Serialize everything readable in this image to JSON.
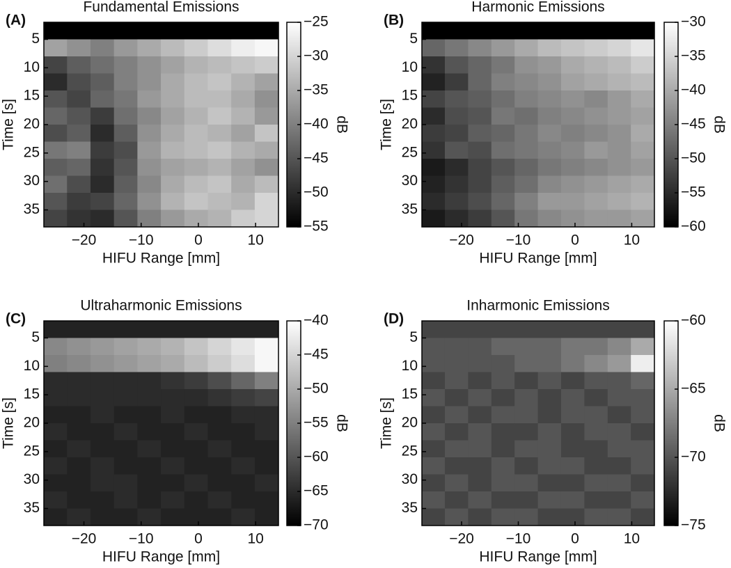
{
  "chart_data": [
    {
      "type": "heatmap",
      "panel_label": "(A)",
      "title": "Fundamental Emissions",
      "xlabel": "HIFU Range [mm]",
      "ylabel": "Time [s]",
      "colorbar_label": "dB",
      "colormap": "gray",
      "y_reversed": true,
      "x": [
        -25,
        -20.9,
        -16.8,
        -12.7,
        -8.6,
        -4.5,
        -0.4,
        3.7,
        7.8,
        11.9
      ],
      "y": [
        3.5,
        6.5,
        9.5,
        12.5,
        15.5,
        18.5,
        21.5,
        24.5,
        27.5,
        30.5,
        33.5,
        36.5
      ],
      "z": [
        [
          -55,
          -55,
          -55,
          -55,
          -55,
          -55,
          -55,
          -55,
          -55,
          -55
        ],
        [
          -36,
          -38,
          -40,
          -37,
          -35,
          -33,
          -31,
          -29,
          -27,
          -26
        ],
        [
          -47,
          -44,
          -42,
          -40,
          -38,
          -36,
          -34,
          -33,
          -32,
          -31
        ],
        [
          -50,
          -46,
          -44,
          -40,
          -38,
          -35,
          -33,
          -32,
          -34,
          -36
        ],
        [
          -45,
          -47,
          -43,
          -41,
          -37,
          -35,
          -33,
          -33,
          -35,
          -38
        ],
        [
          -43,
          -45,
          -48,
          -42,
          -39,
          -36,
          -34,
          -32,
          -34,
          -37
        ],
        [
          -46,
          -44,
          -50,
          -44,
          -38,
          -35,
          -33,
          -34,
          -36,
          -32
        ],
        [
          -41,
          -40,
          -48,
          -46,
          -37,
          -34,
          -33,
          -32,
          -34,
          -35
        ],
        [
          -44,
          -43,
          -49,
          -45,
          -38,
          -36,
          -35,
          -34,
          -36,
          -38
        ],
        [
          -42,
          -46,
          -50,
          -44,
          -39,
          -35,
          -33,
          -32,
          -35,
          -33
        ],
        [
          -45,
          -48,
          -47,
          -43,
          -38,
          -34,
          -32,
          -33,
          -34,
          -30
        ],
        [
          -47,
          -49,
          -50,
          -45,
          -40,
          -37,
          -35,
          -34,
          -31,
          -30
        ]
      ],
      "xlim": [
        -27,
        14
      ],
      "ylim": [
        2,
        38
      ],
      "xticks": [
        {
          "value": -20,
          "label": "−20"
        },
        {
          "value": -10,
          "label": "−10"
        },
        0,
        10
      ],
      "yticks": [
        5,
        10,
        15,
        20,
        25,
        30,
        35
      ],
      "clim": [
        -55,
        -25
      ],
      "cticks": [
        {
          "value": -55,
          "label": "−55"
        },
        {
          "value": -50,
          "label": "−50"
        },
        {
          "value": -45,
          "label": "−45"
        },
        {
          "value": -40,
          "label": "−40"
        },
        {
          "value": -35,
          "label": "−35"
        },
        {
          "value": -30,
          "label": "−30"
        },
        {
          "value": -25,
          "label": "−25"
        }
      ]
    },
    {
      "type": "heatmap",
      "panel_label": "(B)",
      "title": "Harmonic Emissions",
      "xlabel": "HIFU Range [mm]",
      "ylabel": "Time [s]",
      "colorbar_label": "dB",
      "colormap": "gray",
      "y_reversed": true,
      "x": [
        -25,
        -20.9,
        -16.8,
        -12.7,
        -8.6,
        -4.5,
        -0.4,
        3.7,
        7.8,
        11.9
      ],
      "y": [
        3.5,
        6.5,
        9.5,
        12.5,
        15.5,
        18.5,
        21.5,
        24.5,
        27.5,
        30.5,
        33.5,
        36.5
      ],
      "z": [
        [
          -60,
          -60,
          -60,
          -60,
          -60,
          -60,
          -60,
          -60,
          -60,
          -60
        ],
        [
          -48,
          -46,
          -44,
          -42,
          -40,
          -38,
          -37,
          -36,
          -35,
          -33
        ],
        [
          -54,
          -50,
          -48,
          -46,
          -43,
          -42,
          -40,
          -39,
          -38,
          -36
        ],
        [
          -56,
          -53,
          -48,
          -45,
          -44,
          -43,
          -41,
          -40,
          -39,
          -38
        ],
        [
          -52,
          -50,
          -49,
          -47,
          -45,
          -44,
          -43,
          -44,
          -42,
          -40
        ],
        [
          -55,
          -51,
          -50,
          -46,
          -47,
          -45,
          -44,
          -43,
          -42,
          -41
        ],
        [
          -53,
          -52,
          -49,
          -48,
          -46,
          -44,
          -45,
          -44,
          -43,
          -40
        ],
        [
          -54,
          -50,
          -51,
          -47,
          -46,
          -45,
          -44,
          -42,
          -43,
          -41
        ],
        [
          -57,
          -55,
          -52,
          -50,
          -48,
          -46,
          -45,
          -44,
          -43,
          -42
        ],
        [
          -56,
          -54,
          -52,
          -49,
          -47,
          -44,
          -43,
          -42,
          -41,
          -40
        ],
        [
          -55,
          -53,
          -51,
          -48,
          -45,
          -42,
          -42,
          -41,
          -40,
          -39
        ],
        [
          -57,
          -55,
          -53,
          -50,
          -46,
          -44,
          -43,
          -42,
          -42,
          -41
        ]
      ],
      "xlim": [
        -27,
        14
      ],
      "ylim": [
        2,
        38
      ],
      "xticks": [
        {
          "value": -20,
          "label": "−20"
        },
        {
          "value": -10,
          "label": "−10"
        },
        0,
        10
      ],
      "yticks": [
        5,
        10,
        15,
        20,
        25,
        30,
        35
      ],
      "clim": [
        -60,
        -30
      ],
      "cticks": [
        {
          "value": -60,
          "label": "−60"
        },
        {
          "value": -55,
          "label": "−55"
        },
        {
          "value": -50,
          "label": "−50"
        },
        {
          "value": -45,
          "label": "−45"
        },
        {
          "value": -40,
          "label": "−40"
        },
        {
          "value": -35,
          "label": "−35"
        },
        {
          "value": -30,
          "label": "−30"
        }
      ]
    },
    {
      "type": "heatmap",
      "panel_label": "(C)",
      "title": "Ultraharmonic Emissions",
      "xlabel": "HIFU Range [mm]",
      "ylabel": "Time [s]",
      "colorbar_label": "dB",
      "colormap": "gray",
      "y_reversed": true,
      "x": [
        -25,
        -20.9,
        -16.8,
        -12.7,
        -8.6,
        -4.5,
        -0.4,
        3.7,
        7.8,
        11.9
      ],
      "y": [
        3.5,
        6.5,
        9.5,
        12.5,
        15.5,
        18.5,
        21.5,
        24.5,
        27.5,
        30.5,
        33.5,
        36.5
      ],
      "z": [
        [
          -66,
          -66,
          -66,
          -66,
          -66,
          -66,
          -66,
          -66,
          -66,
          -66
        ],
        [
          -54,
          -53,
          -52,
          -51,
          -50,
          -49,
          -47,
          -45,
          -43,
          -41
        ],
        [
          -55,
          -54,
          -53,
          -52,
          -51,
          -50,
          -48,
          -46,
          -44,
          -41
        ],
        [
          -65,
          -65,
          -65,
          -65,
          -65,
          -64,
          -63,
          -61,
          -58,
          -55
        ],
        [
          -65,
          -65,
          -65,
          -65,
          -65,
          -65,
          -65,
          -64,
          -63,
          -62
        ],
        [
          -66,
          -66,
          -65,
          -66,
          -66,
          -65,
          -66,
          -66,
          -65,
          -65
        ],
        [
          -65,
          -66,
          -66,
          -65,
          -66,
          -66,
          -65,
          -66,
          -66,
          -65
        ],
        [
          -66,
          -65,
          -66,
          -66,
          -65,
          -66,
          -66,
          -65,
          -66,
          -66
        ],
        [
          -65,
          -66,
          -65,
          -66,
          -66,
          -65,
          -66,
          -66,
          -65,
          -66
        ],
        [
          -66,
          -66,
          -65,
          -65,
          -66,
          -66,
          -65,
          -66,
          -66,
          -65
        ],
        [
          -65,
          -66,
          -66,
          -65,
          -66,
          -65,
          -66,
          -65,
          -66,
          -66
        ],
        [
          -66,
          -65,
          -66,
          -66,
          -65,
          -66,
          -66,
          -66,
          -65,
          -66
        ]
      ],
      "xlim": [
        -27,
        14
      ],
      "ylim": [
        2,
        38
      ],
      "xticks": [
        {
          "value": -20,
          "label": "−20"
        },
        {
          "value": -10,
          "label": "−10"
        },
        0,
        10
      ],
      "yticks": [
        5,
        10,
        15,
        20,
        25,
        30,
        35
      ],
      "clim": [
        -70,
        -40
      ],
      "cticks": [
        {
          "value": -70,
          "label": "−70"
        },
        {
          "value": -65,
          "label": "−65"
        },
        {
          "value": -60,
          "label": "−60"
        },
        {
          "value": -55,
          "label": "−55"
        },
        {
          "value": -50,
          "label": "−50"
        },
        {
          "value": -45,
          "label": "−45"
        },
        {
          "value": -40,
          "label": "−40"
        }
      ]
    },
    {
      "type": "heatmap",
      "panel_label": "(D)",
      "title": "Inharmonic Emissions",
      "xlabel": "HIFU Range [mm]",
      "ylabel": "Time [s]",
      "colorbar_label": "dB",
      "colormap": "gray",
      "y_reversed": true,
      "x": [
        -25,
        -20.9,
        -16.8,
        -12.7,
        -8.6,
        -4.5,
        -0.4,
        3.7,
        7.8,
        11.9
      ],
      "y": [
        3.5,
        6.5,
        9.5,
        12.5,
        15.5,
        18.5,
        21.5,
        24.5,
        27.5,
        30.5,
        33.5,
        36.5
      ],
      "z": [
        [
          -71,
          -71,
          -71,
          -71,
          -71,
          -71,
          -71,
          -71,
          -71,
          -71
        ],
        [
          -70,
          -70,
          -70,
          -69,
          -69,
          -69,
          -68,
          -68,
          -67,
          -65
        ],
        [
          -70,
          -70,
          -70,
          -70,
          -69,
          -69,
          -68,
          -67,
          -66,
          -61
        ],
        [
          -71,
          -70,
          -71,
          -70,
          -71,
          -70,
          -71,
          -70,
          -70,
          -69
        ],
        [
          -70,
          -71,
          -70,
          -71,
          -70,
          -71,
          -70,
          -71,
          -70,
          -70
        ],
        [
          -71,
          -70,
          -71,
          -70,
          -70,
          -71,
          -70,
          -70,
          -71,
          -70
        ],
        [
          -70,
          -71,
          -70,
          -71,
          -71,
          -70,
          -71,
          -70,
          -70,
          -71
        ],
        [
          -71,
          -70,
          -70,
          -71,
          -70,
          -70,
          -71,
          -71,
          -70,
          -70
        ],
        [
          -70,
          -71,
          -71,
          -70,
          -71,
          -70,
          -70,
          -71,
          -71,
          -70
        ],
        [
          -71,
          -70,
          -71,
          -70,
          -70,
          -71,
          -71,
          -70,
          -70,
          -71
        ],
        [
          -70,
          -71,
          -70,
          -71,
          -71,
          -70,
          -70,
          -71,
          -71,
          -70
        ],
        [
          -71,
          -70,
          -71,
          -70,
          -70,
          -71,
          -71,
          -70,
          -70,
          -71
        ]
      ],
      "xlim": [
        -27,
        14
      ],
      "ylim": [
        2,
        38
      ],
      "xticks": [
        {
          "value": -20,
          "label": "−20"
        },
        {
          "value": -10,
          "label": "−10"
        },
        0,
        10
      ],
      "yticks": [
        5,
        10,
        15,
        20,
        25,
        30,
        35
      ],
      "clim": [
        -75,
        -60
      ],
      "cticks": [
        {
          "value": -75,
          "label": "−75"
        },
        {
          "value": -70,
          "label": "−70"
        },
        {
          "value": -65,
          "label": "−65"
        },
        {
          "value": -60,
          "label": "−60"
        }
      ]
    }
  ]
}
